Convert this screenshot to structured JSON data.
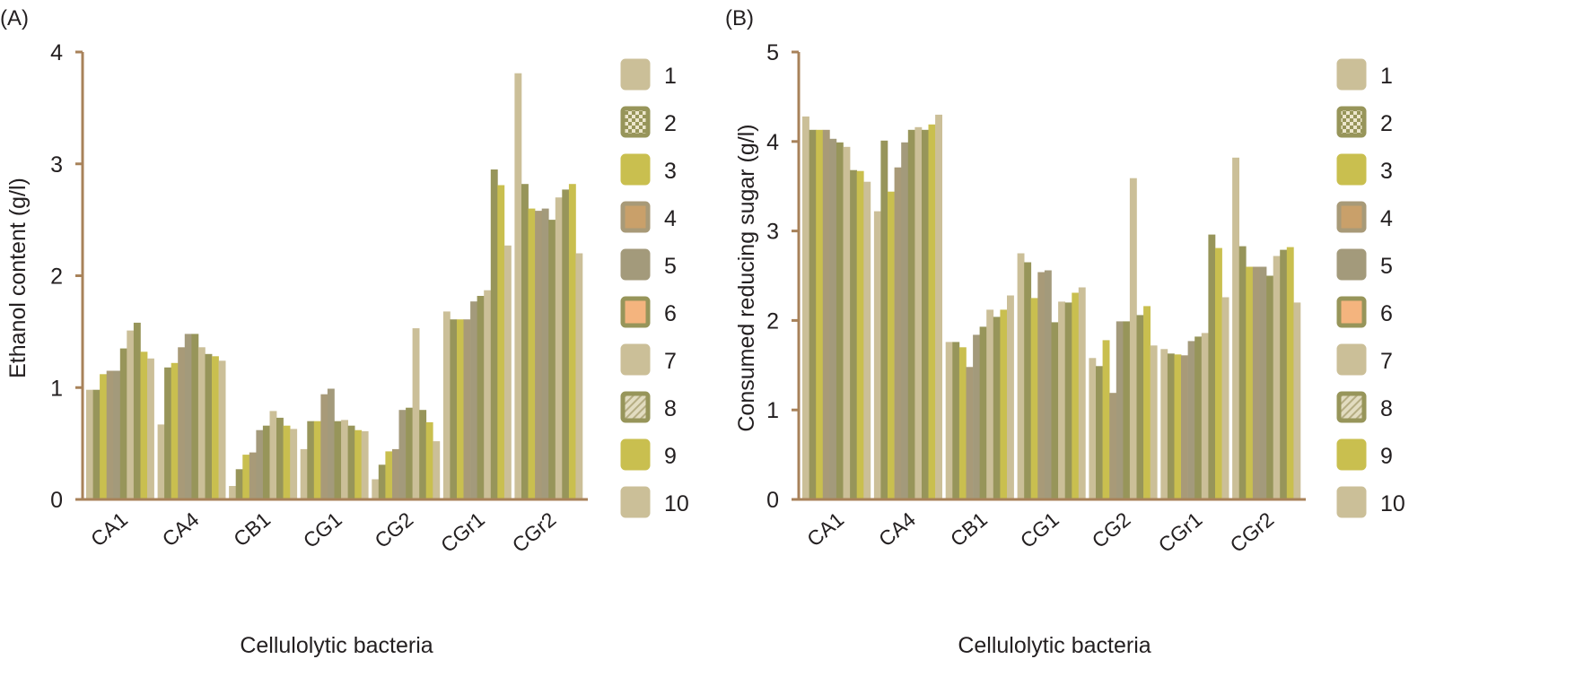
{
  "chart_data": [
    {
      "type": "bar",
      "panel_label": "(A)",
      "title": "",
      "xlabel": "Cellulolytic bacteria",
      "ylabel": "Ethanol content (g/l)",
      "ylim": [
        0,
        4
      ],
      "yticks": [
        "0",
        "1",
        "2",
        "3",
        "4"
      ],
      "categories": [
        "CA1",
        "CA4",
        "CB1",
        "CG1",
        "CG2",
        "CGr1",
        "CGr2"
      ],
      "legend_placement": "right",
      "series": [
        {
          "name": "1",
          "values": [
            0.98,
            0.67,
            0.12,
            0.45,
            0.18,
            1.68,
            3.81
          ]
        },
        {
          "name": "2",
          "values": [
            0.98,
            1.18,
            0.27,
            0.7,
            0.31,
            1.61,
            2.82
          ]
        },
        {
          "name": "3",
          "values": [
            1.12,
            1.22,
            0.4,
            0.7,
            0.43,
            1.61,
            2.6
          ]
        },
        {
          "name": "4",
          "values": [
            1.15,
            1.36,
            0.42,
            0.94,
            0.45,
            1.61,
            2.58
          ]
        },
        {
          "name": "5",
          "values": [
            1.15,
            1.48,
            0.62,
            0.99,
            0.8,
            1.77,
            2.6
          ]
        },
        {
          "name": "6",
          "values": [
            1.35,
            1.48,
            0.66,
            0.7,
            0.82,
            1.82,
            2.5
          ]
        },
        {
          "name": "7",
          "values": [
            1.51,
            1.36,
            0.79,
            0.71,
            1.53,
            1.87,
            2.7
          ]
        },
        {
          "name": "8",
          "values": [
            1.58,
            1.3,
            0.73,
            0.66,
            0.8,
            2.95,
            2.77
          ]
        },
        {
          "name": "9",
          "values": [
            1.32,
            1.28,
            0.66,
            0.62,
            0.69,
            2.81,
            2.82
          ]
        },
        {
          "name": "10",
          "values": [
            1.26,
            1.24,
            0.63,
            0.61,
            0.52,
            2.27,
            2.2
          ]
        }
      ]
    },
    {
      "type": "bar",
      "panel_label": "(B)",
      "title": "",
      "xlabel": "Cellulolytic bacteria",
      "ylabel": "Consumed reducing sugar (g/l)",
      "ylim": [
        0,
        5
      ],
      "yticks": [
        "0",
        "1",
        "2",
        "3",
        "4",
        "5"
      ],
      "categories": [
        "CA1",
        "CA4",
        "CB1",
        "CG1",
        "CG2",
        "CGr1",
        "CGr2"
      ],
      "legend_placement": "right",
      "series": [
        {
          "name": "1",
          "values": [
            4.28,
            3.22,
            1.76,
            2.75,
            1.58,
            1.68,
            3.82
          ]
        },
        {
          "name": "2",
          "values": [
            4.13,
            4.01,
            1.76,
            2.65,
            1.49,
            1.63,
            2.83
          ]
        },
        {
          "name": "3",
          "values": [
            4.13,
            3.44,
            1.7,
            2.25,
            1.78,
            1.62,
            2.6
          ]
        },
        {
          "name": "4",
          "values": [
            4.13,
            3.71,
            1.48,
            2.54,
            1.19,
            1.61,
            2.6
          ]
        },
        {
          "name": "5",
          "values": [
            4.03,
            3.99,
            1.84,
            2.56,
            1.99,
            1.77,
            2.6
          ]
        },
        {
          "name": "6",
          "values": [
            3.99,
            4.13,
            1.93,
            1.98,
            1.99,
            1.82,
            2.5
          ]
        },
        {
          "name": "7",
          "values": [
            3.94,
            4.16,
            2.12,
            2.21,
            3.59,
            1.86,
            2.72
          ]
        },
        {
          "name": "8",
          "values": [
            3.68,
            4.13,
            2.04,
            2.2,
            2.06,
            2.96,
            2.79
          ]
        },
        {
          "name": "9",
          "values": [
            3.67,
            4.19,
            2.12,
            2.31,
            2.16,
            2.81,
            2.82
          ]
        },
        {
          "name": "10",
          "values": [
            3.55,
            4.3,
            2.28,
            2.37,
            1.72,
            2.26,
            2.2
          ]
        }
      ]
    }
  ],
  "colors": {
    "axis": "#a8825a",
    "series": [
      "#cbbf98",
      "#97955a",
      "#c9bf4f",
      "#a89a78",
      "#a39a7b",
      "#97955a",
      "#cbbf98",
      "#97955a",
      "#c9bf4f",
      "#cbbf98"
    ],
    "legend_fill": [
      "#cbbf98",
      "#97955a",
      "#c9bf4f",
      "#c9a06a",
      "#a39a7b",
      "#f4b47e",
      "#cbbf98",
      "#d8d0b0",
      "#c9bf4f",
      "#cbbf98"
    ],
    "legend_border": [
      "#cbbf98",
      "#97955a",
      "#c9bf4f",
      "#a89a78",
      "#a39a7b",
      "#97955a",
      "#cbbf98",
      "#97955a",
      "#c9bf4f",
      "#cbbf98"
    ]
  }
}
